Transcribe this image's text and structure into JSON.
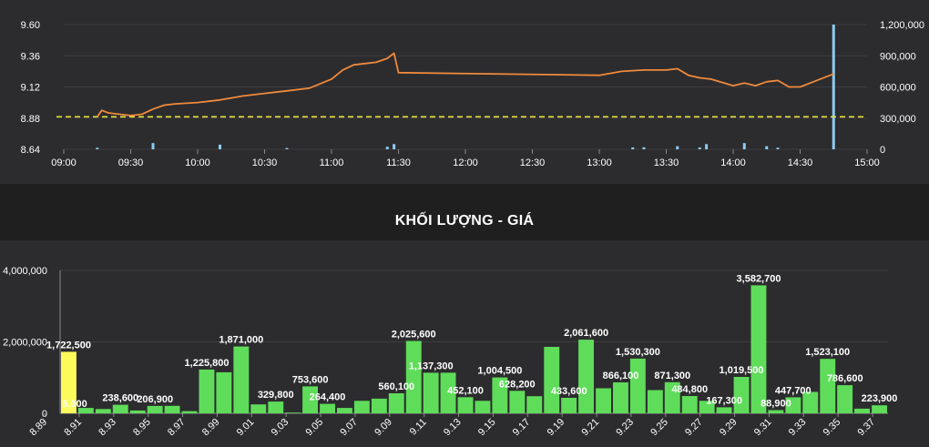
{
  "section_title": "KHỐI LƯỢNG - GIÁ",
  "colors": {
    "price_line": "#f08a3c",
    "reference_line": "#e8e23a",
    "intraday_volume": "#8ecbf0",
    "volume_bar": "#5fdc5a",
    "volume_bar_highlight": "#fbfb5a"
  },
  "chart_data": [
    {
      "type": "line",
      "title": "",
      "x_ticks": [
        "09:00",
        "09:30",
        "10:00",
        "10:30",
        "11:00",
        "11:30",
        "12:00",
        "12:30",
        "13:00",
        "13:30",
        "14:00",
        "14:30",
        "15:00"
      ],
      "y_left_ticks": [
        "9.60",
        "9.36",
        "9.12",
        "8.88",
        "8.64"
      ],
      "y_right_ticks": [
        "1,200,000",
        "900,000",
        "600,000",
        "300,000",
        "0"
      ],
      "ylim_left": [
        8.64,
        9.6
      ],
      "ylim_right": [
        0,
        1200000
      ],
      "reference_price": 8.89,
      "price_series": {
        "x": [
          "09:15",
          "09:17",
          "09:20",
          "09:25",
          "09:30",
          "09:35",
          "09:40",
          "09:45",
          "09:50",
          "10:00",
          "10:10",
          "10:20",
          "10:30",
          "10:40",
          "10:50",
          "11:00",
          "11:05",
          "11:10",
          "11:15",
          "11:20",
          "11:25",
          "11:28",
          "11:30",
          "13:00",
          "13:10",
          "13:20",
          "13:30",
          "13:35",
          "13:40",
          "13:45",
          "13:50",
          "14:00",
          "14:05",
          "14:10",
          "14:15",
          "14:20",
          "14:25",
          "14:30",
          "14:45"
        ],
        "values": [
          8.89,
          8.94,
          8.92,
          8.91,
          8.9,
          8.91,
          8.95,
          8.98,
          8.99,
          9.0,
          9.02,
          9.05,
          9.07,
          9.09,
          9.11,
          9.18,
          9.25,
          9.29,
          9.3,
          9.31,
          9.34,
          9.38,
          9.23,
          9.21,
          9.24,
          9.25,
          9.25,
          9.26,
          9.21,
          9.19,
          9.18,
          9.13,
          9.15,
          9.13,
          9.16,
          9.17,
          9.12,
          9.12,
          9.22
        ]
      },
      "volume_series": {
        "x": [
          "09:15",
          "09:40",
          "10:10",
          "10:40",
          "11:25",
          "11:28",
          "13:15",
          "13:20",
          "13:35",
          "13:45",
          "13:48",
          "14:05",
          "14:15",
          "14:20",
          "14:45"
        ],
        "values": [
          15000,
          60000,
          45000,
          12000,
          25000,
          50000,
          18000,
          20000,
          30000,
          18000,
          50000,
          60000,
          30000,
          15000,
          1200000
        ]
      }
    },
    {
      "type": "bar",
      "title": "",
      "ylim": [
        0,
        4000000
      ],
      "y_ticks": [
        "4,000,000",
        "2,000,000",
        "0"
      ],
      "x_tick_labels": [
        "8.89",
        "8.91",
        "8.93",
        "8.95",
        "8.97",
        "8.99",
        "9.01",
        "9.03",
        "9.05",
        "9.07",
        "9.09",
        "9.11",
        "9.13",
        "9.15",
        "9.17",
        "9.19",
        "9.21",
        "9.23",
        "9.25",
        "9.27",
        "9.29",
        "9.31",
        "9.33",
        "9.35",
        "9.37"
      ],
      "prices": [
        8.9,
        8.91,
        8.92,
        8.93,
        8.94,
        8.95,
        8.96,
        8.97,
        8.98,
        8.99,
        9.0,
        9.01,
        9.02,
        9.03,
        9.04,
        9.05,
        9.06,
        9.07,
        9.08,
        9.09,
        9.1,
        9.11,
        9.12,
        9.13,
        9.14,
        9.15,
        9.16,
        9.17,
        9.18,
        9.19,
        9.2,
        9.21,
        9.22,
        9.23,
        9.24,
        9.25,
        9.26,
        9.27,
        9.28,
        9.29,
        9.3,
        9.31,
        9.32,
        9.33,
        9.34,
        9.35,
        9.36,
        9.37
      ],
      "values": [
        1722500,
        150000,
        120000,
        238600,
        80000,
        206900,
        210000,
        60000,
        1225800,
        1150000,
        1871000,
        250000,
        329800,
        20000,
        753600,
        264400,
        150000,
        350000,
        410000,
        560100,
        2025600,
        1137300,
        1137300,
        452100,
        350000,
        1004500,
        628200,
        480000,
        1860000,
        433600,
        2061600,
        700000,
        866100,
        1530300,
        650000,
        871300,
        484800,
        350000,
        167300,
        1019500,
        3582700,
        88900,
        447700,
        600000,
        1523100,
        786600,
        130000,
        223900
      ],
      "labels": [
        "1,722,500",
        "",
        "",
        "238,600",
        "",
        "206,900",
        "",
        "",
        "1,225,800",
        "",
        "1,871,000",
        "",
        "329,800",
        "",
        "753,600",
        "264,400",
        "",
        "",
        "",
        "560,100",
        "2,025,600",
        "1,137,300",
        "",
        "452,100",
        "",
        "1,004,500",
        "628,200",
        "",
        "",
        "433,600",
        "2,061,600",
        "",
        "866,100",
        "1,530,300",
        "",
        "871,300",
        "484,800",
        "",
        "167,300",
        "1,019,500",
        "3,582,700",
        "88,900",
        "447,700",
        "",
        "1,523,100",
        "786,600",
        "",
        "223,900"
      ],
      "highlight_index": 0,
      "extra_labels": [
        {
          "price": 8.9,
          "text": "5,000"
        }
      ]
    }
  ]
}
